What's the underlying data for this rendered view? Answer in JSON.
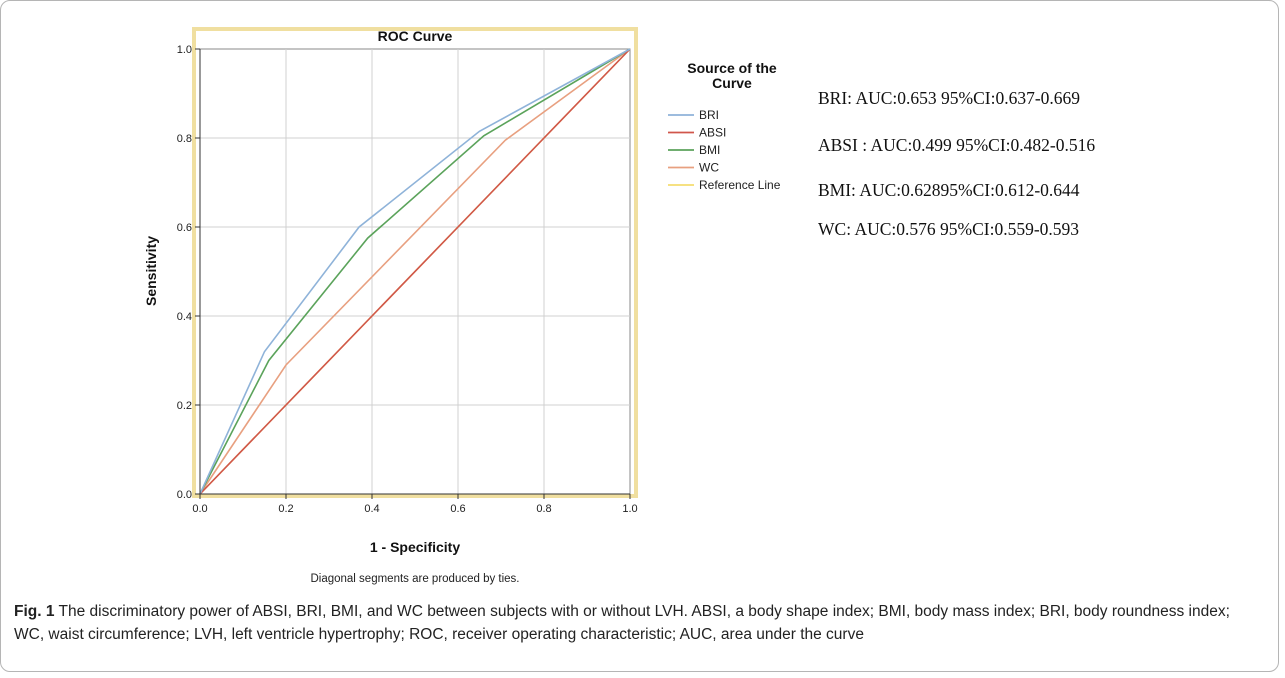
{
  "chart_data": {
    "type": "line",
    "title": "ROC Curve",
    "xlabel": "1 - Specificity",
    "ylabel": "Sensitivity",
    "xlim": [
      0,
      1
    ],
    "ylim": [
      0,
      1
    ],
    "xticks": [
      "0.0",
      "0.2",
      "0.4",
      "0.6",
      "0.8",
      "1.0"
    ],
    "yticks": [
      "0.0",
      "0.2",
      "0.4",
      "0.6",
      "0.8",
      "1.0"
    ],
    "grid": true,
    "footnote": "Diagonal segments are produced by ties.",
    "legend": {
      "title": "Source of the Curve",
      "placement": "right",
      "entries": [
        "BRI",
        "ABSI",
        "BMI",
        "WC",
        "Reference Line"
      ]
    },
    "series": [
      {
        "name": "BRI",
        "color": "#8fb3d9",
        "x": [
          0,
          0.15,
          0.37,
          0.65,
          1.0
        ],
        "y": [
          0,
          0.32,
          0.6,
          0.815,
          1.0
        ]
      },
      {
        "name": "ABSI",
        "color": "#d0564b",
        "x": [
          0,
          0.2,
          0.4,
          0.6,
          0.8,
          1.0
        ],
        "y": [
          0,
          0.2,
          0.4,
          0.6,
          0.8,
          1.0
        ]
      },
      {
        "name": "BMI",
        "color": "#5ba35b",
        "x": [
          0,
          0.16,
          0.39,
          0.66,
          1.0
        ],
        "y": [
          0,
          0.3,
          0.575,
          0.805,
          1.0
        ]
      },
      {
        "name": "WC",
        "color": "#e8a080",
        "x": [
          0,
          0.2,
          0.71,
          1.0
        ],
        "y": [
          0,
          0.29,
          0.795,
          1.0
        ]
      },
      {
        "name": "Reference Line",
        "color": "#f5dd70",
        "x": [
          0,
          1.0
        ],
        "y": [
          0,
          1.0
        ]
      }
    ]
  },
  "auc_lines": [
    "BRI:  AUC:0.653 95%CI:0.637-0.669",
    "ABSI :  AUC:0.499  95%CI:0.482-0.516",
    "BMI:  AUC:0.62895%CI:0.612-0.644",
    "WC:  AUC:0.576 95%CI:0.559-0.593"
  ],
  "caption": {
    "label": "Fig. 1",
    "text": "  The discriminatory power of ABSI, BRI, BMI, and WC between subjects with or without LVH. ABSI, a body shape index; BMI, body mass index; BRI, body roundness index; WC, waist circumference; LVH, left ventricle hypertrophy; ROC, receiver operating characteristic; AUC, area under the curve"
  }
}
